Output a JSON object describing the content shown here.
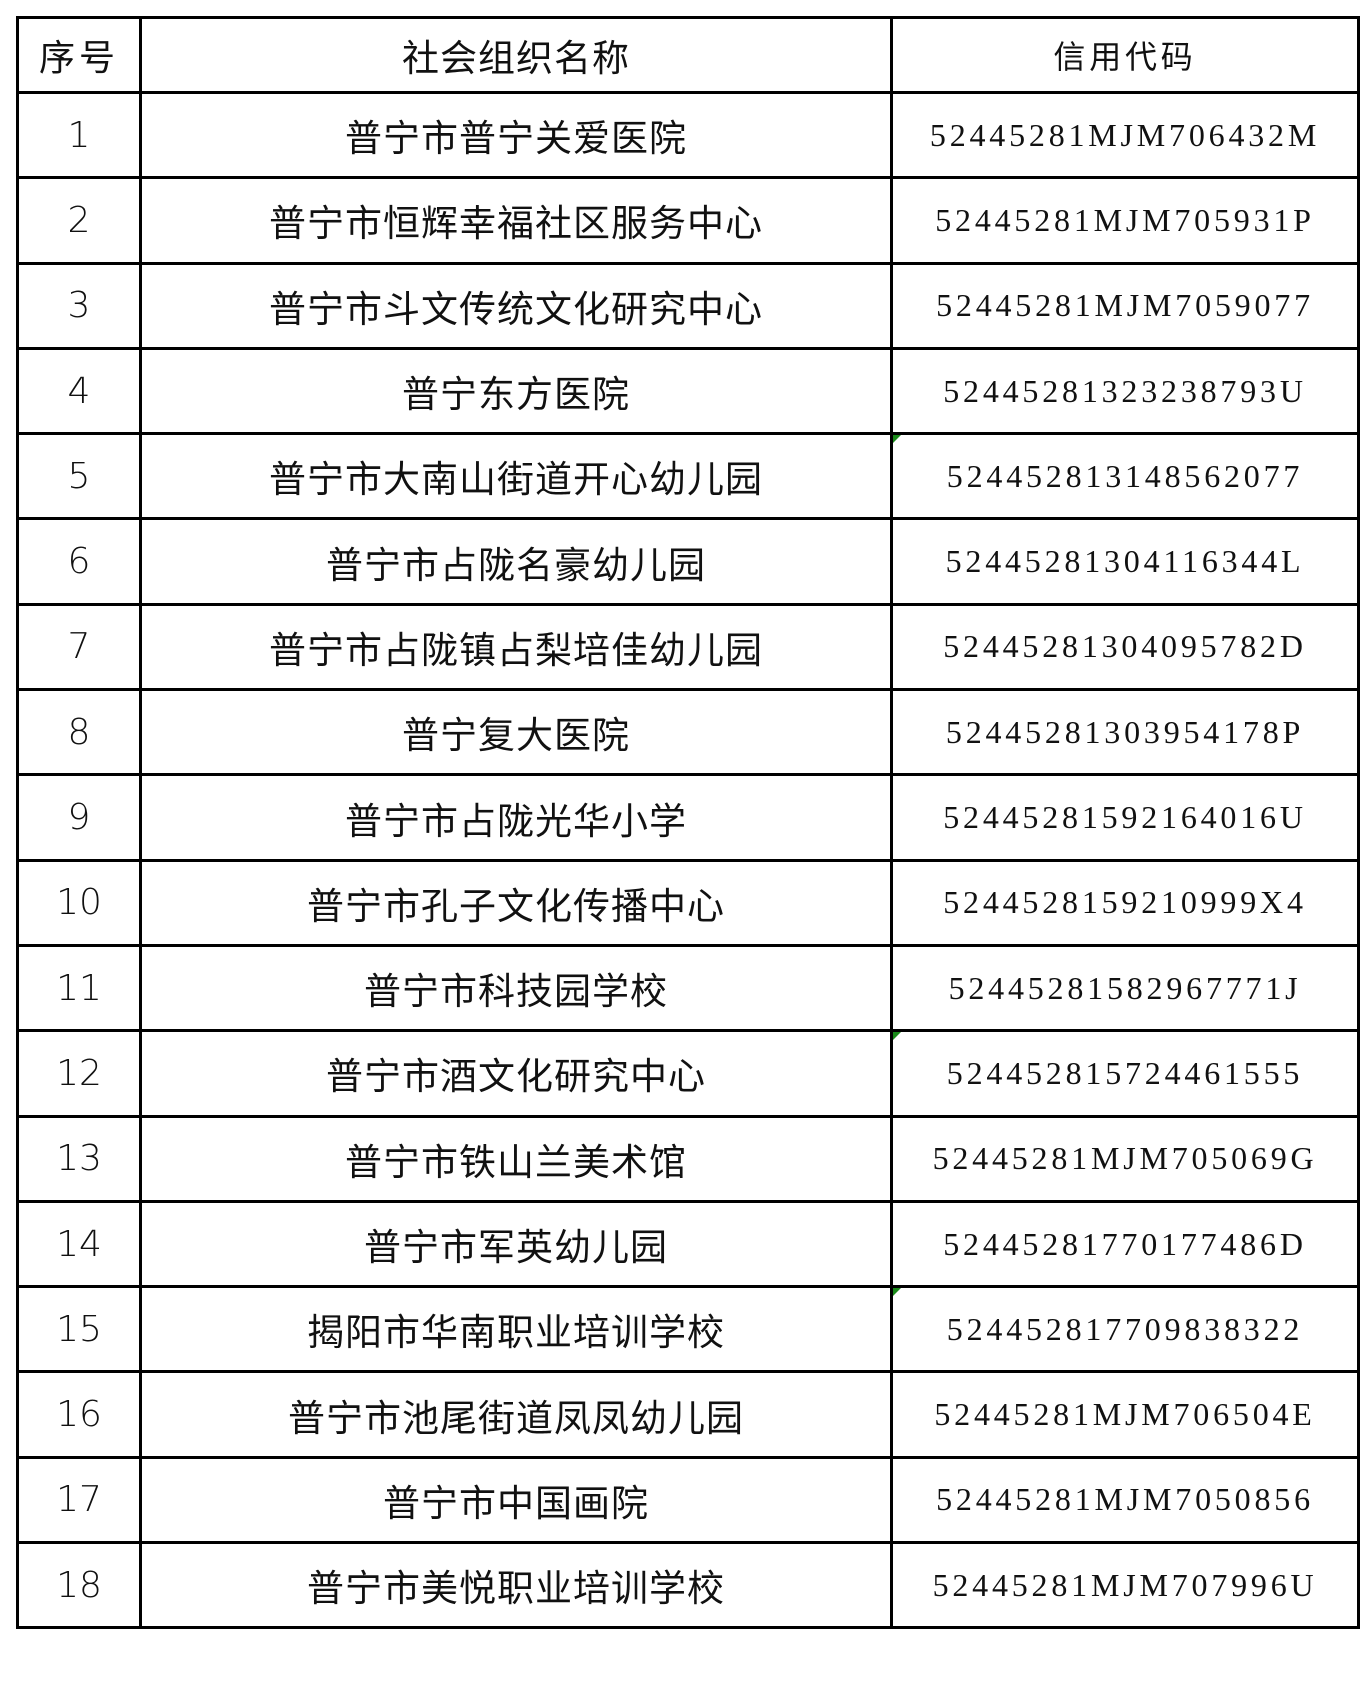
{
  "table": {
    "headers": [
      "序号",
      "社会组织名称",
      "信用代码"
    ],
    "error_indicator_color": "#1a8a1a",
    "rows": [
      {
        "no": "1",
        "name": "普宁市普宁关爱医院",
        "code": "52445281MJM706432M",
        "flag": false
      },
      {
        "no": "2",
        "name": "普宁市恒辉幸福社区服务中心",
        "code": "52445281MJM705931P",
        "flag": false
      },
      {
        "no": "3",
        "name": "普宁市斗文传统文化研究中心",
        "code": "52445281MJM7059077",
        "flag": false
      },
      {
        "no": "4",
        "name": "普宁东方医院",
        "code": "52445281323238793U",
        "flag": false
      },
      {
        "no": "5",
        "name": "普宁市大南山街道开心幼儿园",
        "code": "524452813148562077",
        "flag": true
      },
      {
        "no": "6",
        "name": "普宁市占陇名豪幼儿园",
        "code": "52445281304116344L",
        "flag": false
      },
      {
        "no": "7",
        "name": "普宁市占陇镇占梨培佳幼儿园",
        "code": "52445281304095782D",
        "flag": false
      },
      {
        "no": "8",
        "name": "普宁复大医院",
        "code": "52445281303954178P",
        "flag": false
      },
      {
        "no": "9",
        "name": "普宁市占陇光华小学",
        "code": "52445281592164016U",
        "flag": false
      },
      {
        "no": "10",
        "name": "普宁市孔子文化传播中心",
        "code": "5244528159210999X4",
        "flag": false
      },
      {
        "no": "11",
        "name": "普宁市科技园学校",
        "code": "52445281582967771J",
        "flag": false
      },
      {
        "no": "12",
        "name": "普宁市酒文化研究中心",
        "code": "524452815724461555",
        "flag": true
      },
      {
        "no": "13",
        "name": "普宁市铁山兰美术馆",
        "code": "52445281MJM705069G",
        "flag": false
      },
      {
        "no": "14",
        "name": "普宁市军英幼儿园",
        "code": "52445281770177486D",
        "flag": false
      },
      {
        "no": "15",
        "name": "揭阳市华南职业培训学校",
        "code": "524452817709838322",
        "flag": true
      },
      {
        "no": "16",
        "name": "普宁市池尾街道凤凤幼儿园",
        "code": "52445281MJM706504E",
        "flag": false
      },
      {
        "no": "17",
        "name": "普宁市中国画院",
        "code": "52445281MJM7050856",
        "flag": false
      },
      {
        "no": "18",
        "name": "普宁市美悦职业培训学校",
        "code": "52445281MJM707996U",
        "flag": false
      }
    ]
  }
}
